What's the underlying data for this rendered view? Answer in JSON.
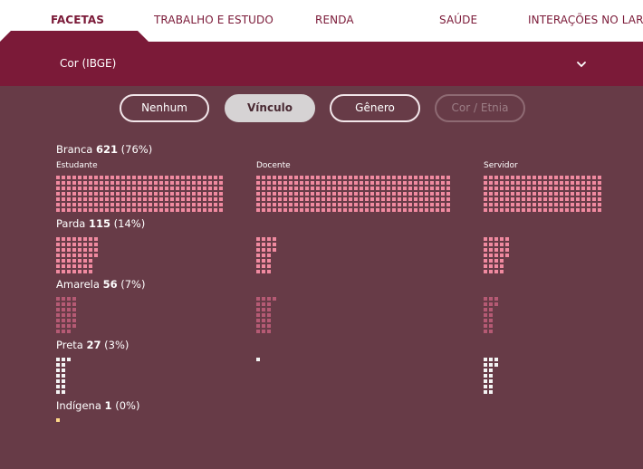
{
  "tabs": [
    {
      "label": "FACETAS",
      "active": true
    },
    {
      "label": "TRABALHO E ESTUDO",
      "active": false
    },
    {
      "label": "RENDA",
      "active": false
    },
    {
      "label": "SAÚDE",
      "active": false
    },
    {
      "label": "INTERAÇÕES NO LAR",
      "active": false
    }
  ],
  "facet": {
    "selected": "Cor (IBGE)",
    "icon": "chevron-down-icon"
  },
  "buttons": [
    {
      "label": "Nenhum",
      "state": "default"
    },
    {
      "label": "Vínculo",
      "state": "selected"
    },
    {
      "label": "Gênero",
      "state": "default"
    },
    {
      "label": "Cor / Etnia",
      "state": "disabled"
    }
  ],
  "columns": [
    "Estudante",
    "Docente",
    "Servidor"
  ],
  "rows": [
    {
      "name": "Branca",
      "count": "621",
      "pct": "(76%)",
      "color": "#f08aa0",
      "dots": [
        336,
        378,
        200
      ]
    },
    {
      "name": "Parda",
      "count": "115",
      "pct": "(14%)",
      "color": "#f08aa0",
      "dots": [
        53,
        24,
        32
      ]
    },
    {
      "name": "Amarela",
      "count": "56",
      "pct": "(7%)",
      "color": "#b55a74",
      "dots": [
        27,
        22,
        16
      ]
    },
    {
      "name": "Preta",
      "count": "27",
      "pct": "(3%)",
      "color": "#f3f3f3",
      "dots": [
        15,
        1,
        16
      ]
    },
    {
      "name": "Indígena",
      "count": "1",
      "pct": "(0%)",
      "color": "#ffd98a",
      "dots": [
        1,
        0,
        0
      ]
    }
  ]
}
